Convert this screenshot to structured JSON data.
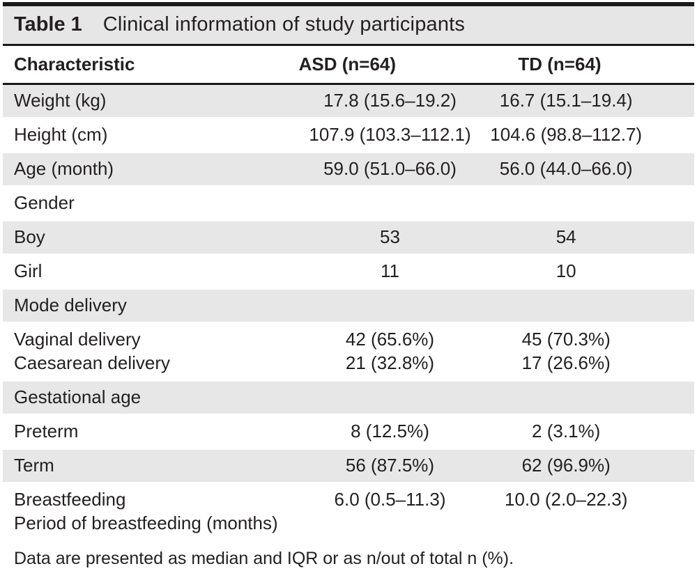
{
  "table": {
    "label": "Table 1",
    "title": "Clinical information of study participants",
    "columns": [
      "Characteristic",
      "ASD (n=64)",
      "TD (n=64)"
    ],
    "rows": [
      {
        "label": "Weight (kg)",
        "asd": "17.8 (15.6–19.2)",
        "td": "16.7 (15.1–19.4)",
        "shaded": true
      },
      {
        "label": "Height (cm)",
        "asd": "107.9 (103.3–112.1)",
        "td": "104.6 (98.8–112.7)",
        "shaded": false
      },
      {
        "label": "Age (month)",
        "asd": "59.0 (51.0–66.0)",
        "td": "56.0 (44.0–66.0)",
        "shaded": true
      },
      {
        "label": "Gender",
        "asd": "",
        "td": "",
        "shaded": false,
        "section": true
      },
      {
        "label": "Boy",
        "asd": "53",
        "td": "54",
        "shaded": true
      },
      {
        "label": "Girl",
        "asd": "11",
        "td": "10",
        "shaded": false
      },
      {
        "label": "Mode delivery",
        "asd": "",
        "td": "",
        "shaded": true,
        "section": true
      },
      {
        "label": "Vaginal delivery",
        "asd": "42 (65.6%)",
        "td": "45 (70.3%)",
        "shaded": false,
        "group": "start"
      },
      {
        "label": "Caesarean delivery",
        "asd": "21 (32.8%)",
        "td": "17 (26.6%)",
        "shaded": false,
        "group": "end"
      },
      {
        "label": "Gestational age",
        "asd": "",
        "td": "",
        "shaded": true,
        "section": true
      },
      {
        "label": "Preterm",
        "asd": "8 (12.5%)",
        "td": "2 (3.1%)",
        "shaded": false
      },
      {
        "label": "Term",
        "asd": "56 (87.5%)",
        "td": "62 (96.9%)",
        "shaded": true
      },
      {
        "label": "Breastfeeding",
        "asd": "6.0 (0.5–11.3)",
        "td": "10.0 (2.0–22.3)",
        "shaded": false,
        "group": "start"
      },
      {
        "label": "Period of breastfeeding (months)",
        "asd": "",
        "td": "",
        "shaded": false,
        "group": "end"
      }
    ],
    "footnote": "Data are presented as median and IQR or as n/out of total n (%).",
    "colors": {
      "stripe": "#e7e7e7",
      "title_band": "#e6e6e6",
      "rule": "#1a1a1a",
      "text": "#231f20",
      "bottom_rule": "#b5b5b5"
    }
  }
}
